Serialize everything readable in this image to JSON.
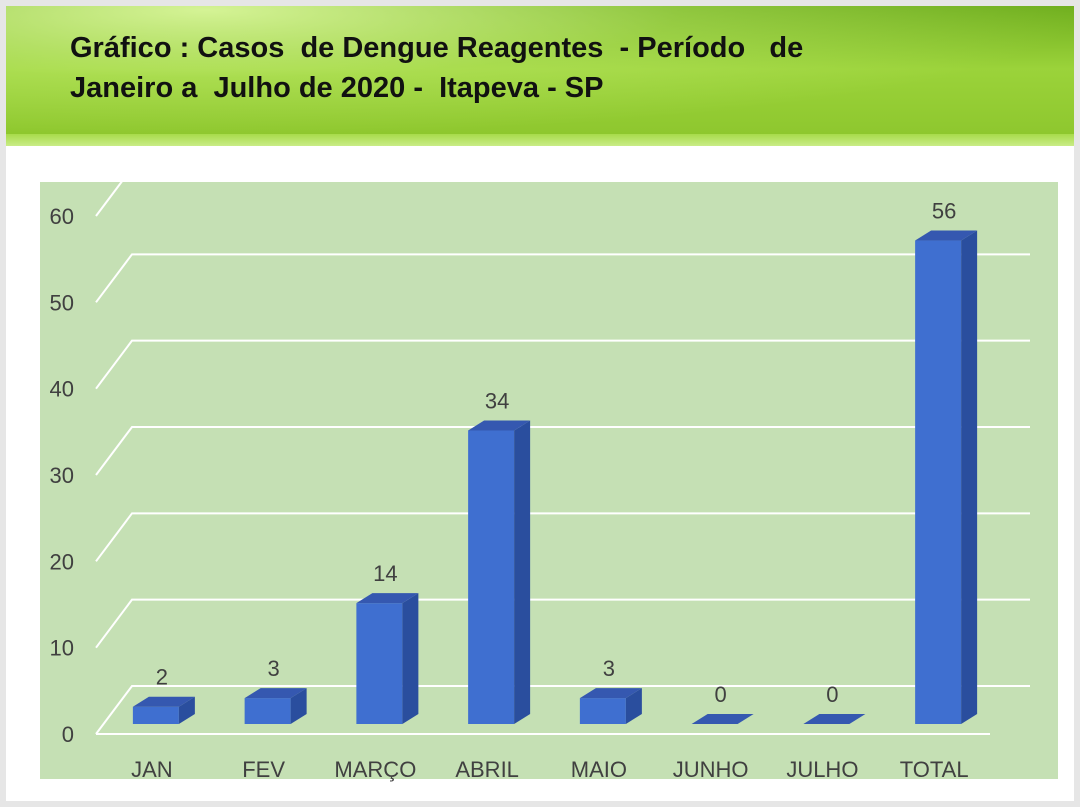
{
  "header": {
    "title_line1": "Gráfico : Casos  de Dengue Reagentes  - Período   de",
    "title_line2": "Janeiro a  Julho de 2020 -  Itapeva - SP"
  },
  "colors": {
    "header_green": "#8cc52c",
    "plot_background": "#c5e0b4",
    "bar_front": "#3f6fd0",
    "bar_side": "#2a4e9e",
    "bar_top": "#3558b0",
    "gridline": "#ffffff",
    "text": "#404040"
  },
  "chart_data": {
    "type": "bar",
    "style": "3d-column",
    "categories": [
      "JAN",
      "FEV",
      "MARÇO",
      "ABRIL",
      "MAIO",
      "JUNHO",
      "JULHO",
      "TOTAL"
    ],
    "values": [
      2,
      3,
      14,
      34,
      3,
      0,
      0,
      56
    ],
    "data_labels": [
      "2",
      "3",
      "14",
      "34",
      "3",
      "0",
      "0",
      "56"
    ],
    "yticks": [
      0,
      10,
      20,
      30,
      40,
      50,
      60
    ],
    "ylim": [
      0,
      60
    ],
    "grid": true,
    "legend": "none"
  }
}
